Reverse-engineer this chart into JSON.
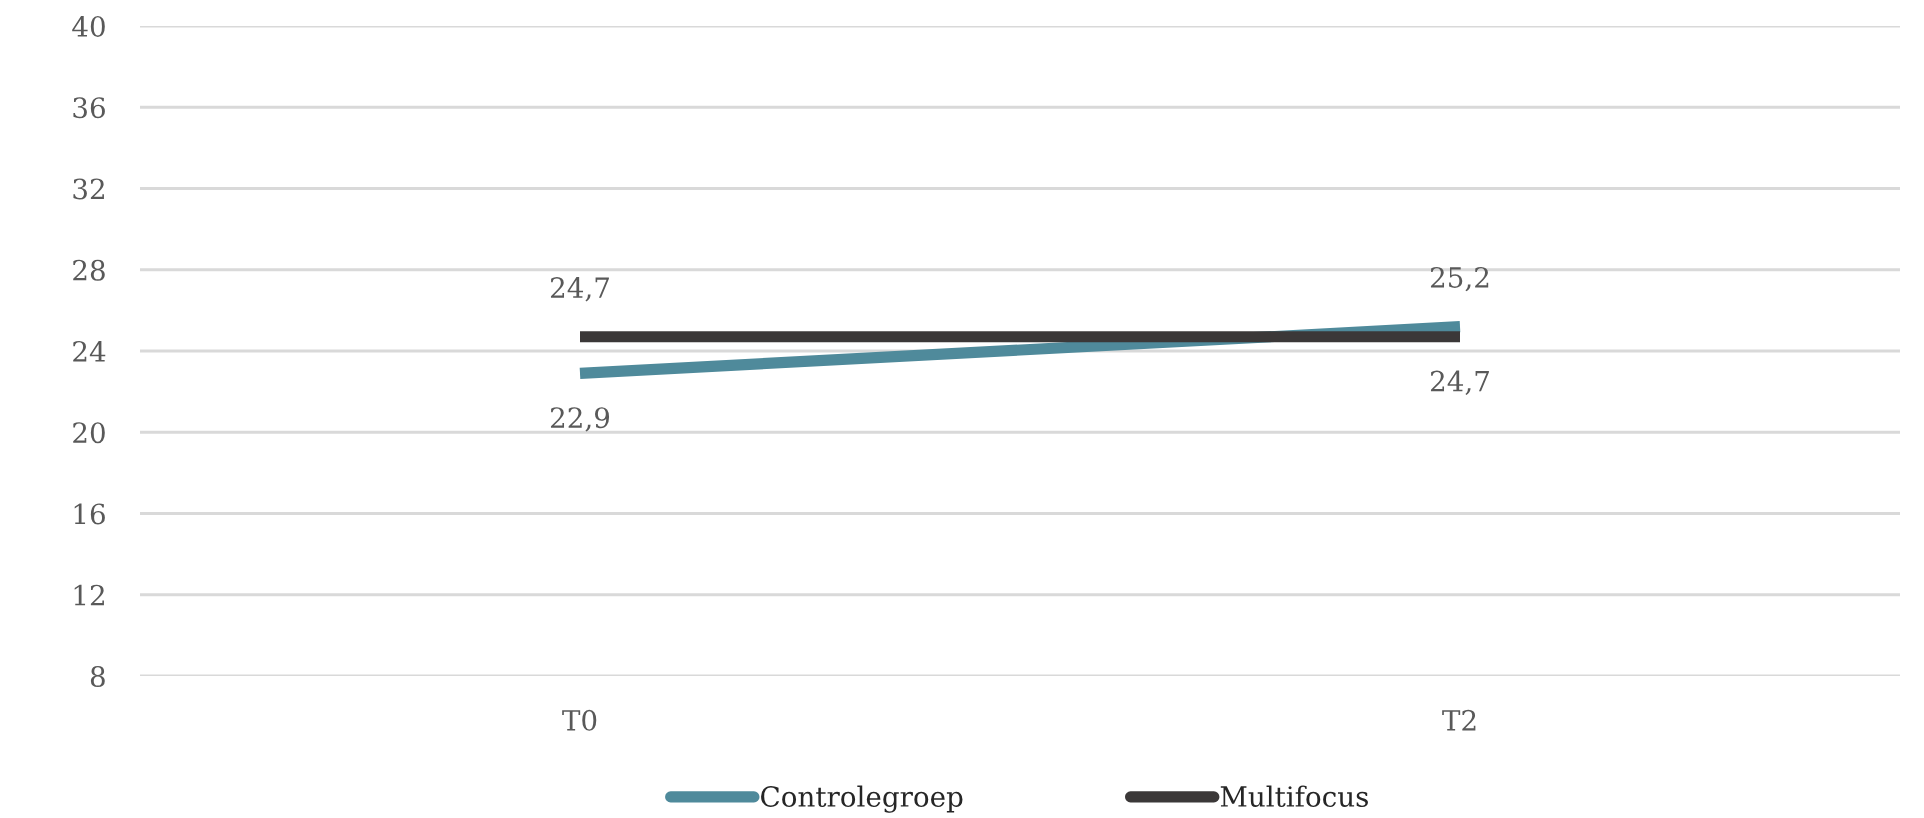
{
  "chart_data": {
    "type": "line",
    "categories": [
      "T0",
      "T2"
    ],
    "series": [
      {
        "name": "Controlegroep",
        "color": "#4f8a9b",
        "values": [
          22.9,
          25.2
        ],
        "value_labels": [
          "22,9",
          "25,2"
        ]
      },
      {
        "name": "Multifocus",
        "color": "#3b3838",
        "values": [
          24.7,
          24.7
        ],
        "value_labels": [
          "24,7",
          "24,7"
        ]
      }
    ],
    "ylim": [
      8,
      40
    ],
    "yticks": [
      8,
      12,
      16,
      20,
      24,
      28,
      32,
      36,
      40
    ],
    "grid": "y",
    "legend": "bottom",
    "marker": "none",
    "line_style": "solid"
  }
}
